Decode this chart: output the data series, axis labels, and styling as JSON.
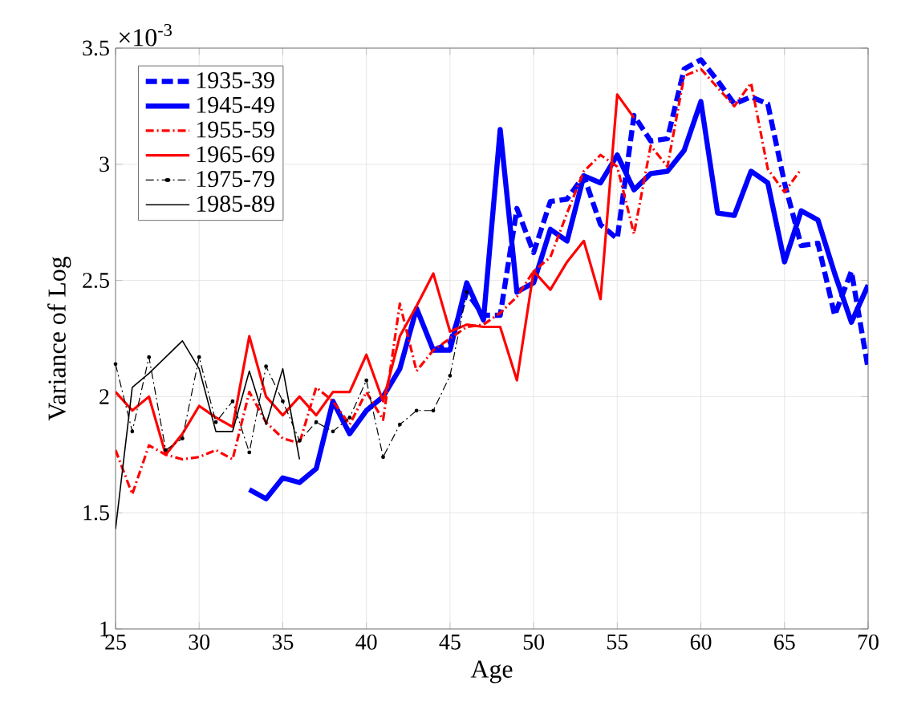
{
  "chart_data": {
    "type": "line",
    "xlabel": "Age",
    "ylabel": "Variance of Log",
    "annotations": [
      "×10$^{-3}$"
    ],
    "xlim": [
      25,
      70
    ],
    "xticks": [
      25,
      30,
      35,
      40,
      45,
      50,
      55,
      60,
      65,
      70
    ],
    "ylim": [
      1,
      3.5
    ],
    "yticks": [
      1,
      1.5,
      2,
      2.5,
      3,
      3.5
    ],
    "grid": true,
    "legend": "top left",
    "series": [
      {
        "name": "1935-39",
        "color": "#0000ff",
        "line_style": "dashed",
        "x": [
          44,
          45,
          46,
          47,
          48,
          49,
          50,
          51,
          52,
          53,
          54,
          55,
          56,
          57,
          58,
          59,
          60,
          61,
          62,
          63,
          64,
          65,
          66,
          67,
          68,
          69,
          70
        ],
        "values": [
          2.2,
          2.23,
          2.45,
          2.35,
          2.35,
          2.81,
          2.62,
          2.84,
          2.85,
          2.95,
          2.74,
          2.68,
          3.21,
          3.1,
          3.11,
          3.41,
          3.45,
          3.36,
          3.26,
          3.29,
          3.26,
          2.92,
          2.65,
          2.66,
          2.35,
          2.54,
          2.12
        ]
      },
      {
        "name": "1945-49",
        "color": "#0000ff",
        "line_style": "solid",
        "x": [
          33,
          34,
          35,
          36,
          37,
          38,
          39,
          40,
          41,
          42,
          43,
          44,
          45,
          46,
          47,
          48,
          49,
          50,
          51,
          52,
          53,
          54,
          55,
          56,
          57,
          58,
          59,
          60,
          61,
          62,
          63,
          64,
          65,
          66,
          67,
          68,
          69,
          70
        ],
        "values": [
          1.6,
          1.56,
          1.65,
          1.63,
          1.69,
          1.98,
          1.84,
          1.94,
          2.0,
          2.12,
          2.38,
          2.2,
          2.2,
          2.49,
          2.33,
          3.15,
          2.45,
          2.49,
          2.72,
          2.67,
          2.95,
          2.92,
          3.04,
          2.89,
          2.96,
          2.97,
          3.06,
          3.27,
          2.79,
          2.78,
          2.97,
          2.92,
          2.58,
          2.8,
          2.76,
          2.53,
          2.32,
          2.48
        ]
      },
      {
        "name": "1955-59",
        "color": "#ff0000",
        "line_style": "dashdot",
        "x": [
          25,
          26,
          27,
          28,
          29,
          30,
          31,
          32,
          33,
          34,
          35,
          36,
          37,
          38,
          39,
          40,
          41,
          42,
          43,
          44,
          45,
          46,
          47,
          48,
          49,
          50,
          51,
          52,
          53,
          54,
          55,
          56,
          57,
          58,
          59,
          60,
          61,
          62,
          63,
          64,
          65,
          66
        ],
        "values": [
          1.77,
          1.58,
          1.79,
          1.75,
          1.73,
          1.74,
          1.77,
          1.73,
          2.02,
          1.89,
          1.82,
          1.8,
          2.04,
          1.98,
          1.88,
          2.02,
          1.9,
          2.4,
          2.11,
          2.2,
          2.25,
          2.3,
          2.31,
          2.36,
          2.43,
          2.54,
          2.6,
          2.79,
          2.97,
          3.04,
          2.99,
          2.7,
          3.08,
          2.99,
          3.38,
          3.41,
          3.33,
          3.25,
          3.35,
          2.98,
          2.88,
          2.98
        ]
      },
      {
        "name": "1965-69",
        "color": "#ff0000",
        "line_style": "solid",
        "x": [
          25,
          26,
          27,
          28,
          29,
          30,
          31,
          32,
          33,
          34,
          35,
          36,
          37,
          38,
          39,
          40,
          41,
          42,
          43,
          44,
          45,
          46,
          47,
          48,
          49,
          50,
          51,
          52,
          53,
          54,
          55,
          56
        ],
        "values": [
          2.02,
          1.94,
          2.0,
          1.75,
          1.84,
          1.96,
          1.91,
          1.87,
          2.26,
          2.0,
          1.92,
          2.0,
          1.92,
          2.02,
          2.02,
          2.18,
          1.98,
          2.26,
          2.39,
          2.53,
          2.28,
          2.31,
          2.3,
          2.3,
          2.07,
          2.54,
          2.46,
          2.58,
          2.67,
          2.42,
          3.3,
          3.2
        ]
      },
      {
        "name": "1975-79",
        "color": "#000000",
        "line_style": "dashdot",
        "marker": "circle",
        "x": [
          25,
          26,
          27,
          28,
          29,
          30,
          31,
          32,
          33,
          34,
          35,
          36,
          37,
          38,
          39,
          40,
          41,
          42,
          43,
          44,
          45,
          46
        ],
        "values": [
          2.14,
          1.85,
          2.17,
          1.77,
          1.82,
          2.17,
          1.89,
          1.98,
          1.76,
          2.13,
          1.98,
          1.81,
          1.89,
          1.85,
          1.91,
          2.07,
          1.74,
          1.88,
          1.94,
          1.94,
          2.09,
          2.45
        ]
      },
      {
        "name": "1985-89",
        "color": "#000000",
        "line_style": "solid",
        "x": [
          25,
          26,
          27,
          28,
          29,
          30,
          31,
          32,
          33,
          34,
          35,
          36
        ],
        "values": [
          1.43,
          2.04,
          2.1,
          2.17,
          2.24,
          2.12,
          1.85,
          1.85,
          2.11,
          1.88,
          2.12,
          1.73
        ]
      }
    ]
  }
}
